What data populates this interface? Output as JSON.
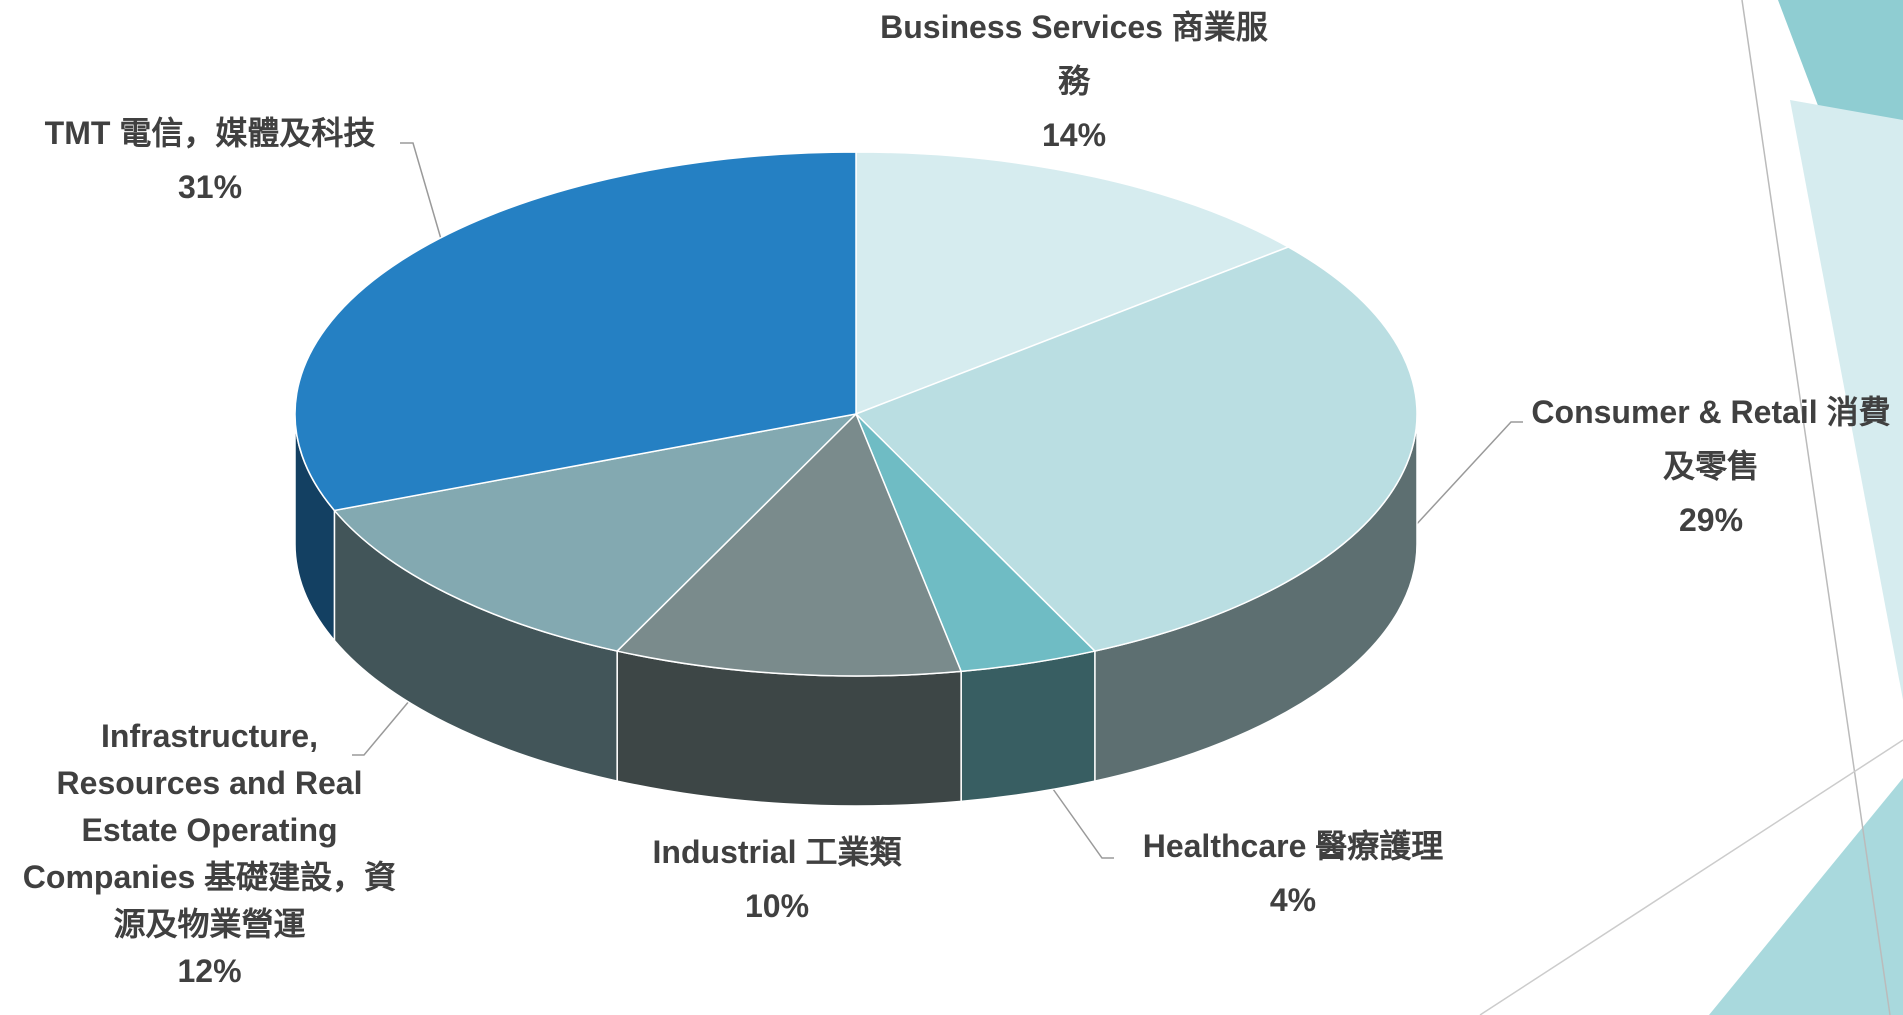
{
  "chart_data": {
    "type": "pie3d",
    "categories": [
      "Business Services 商業服務",
      "Consumer & Retail 消費及零售",
      "Healthcare 醫療護理",
      "Industrial 工業類",
      "Infrastructure, Resources and Real Estate Operating Companies 基礎建設，資源及物業營運",
      "TMT 電信，媒體及科技"
    ],
    "values": [
      14,
      29,
      4,
      10,
      12,
      31
    ],
    "value_labels": [
      "14%",
      "29%",
      "4%",
      "10%",
      "12%",
      "31%"
    ],
    "colors": [
      "#d6ecef",
      "#badee2",
      "#6fbcc4",
      "#7a8b8c",
      "#83a9b1",
      "#2580c3"
    ]
  }
}
